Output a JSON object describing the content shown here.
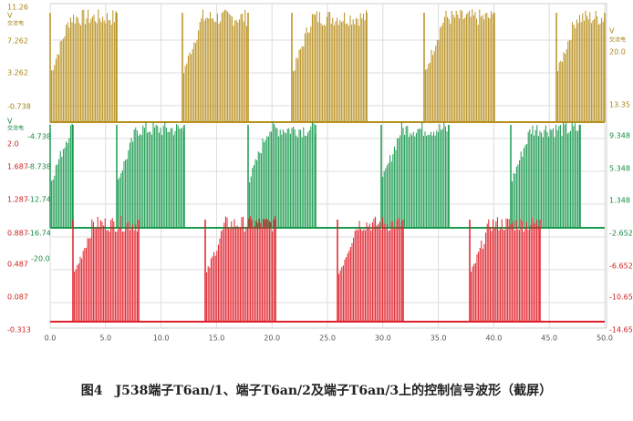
{
  "left_axis": {
    "top_unit": "V",
    "top_name": "交流电",
    "labels_top": [
      "11.26",
      "7.262",
      "3.262",
      "-0.738"
    ],
    "mid_unit": "V",
    "mid_name": "交流电",
    "labels_mid": [
      "-4.738",
      "-8.738",
      "-12.74",
      "-16.74",
      "-20.0"
    ],
    "labels_bottom": [
      "2.0",
      "1.687",
      "1.287",
      "0.887",
      "0.487",
      "0.087",
      "-0.313"
    ]
  },
  "right_axis": {
    "unit": "V",
    "name": "交流电",
    "labels": [
      "20.0",
      "13.35",
      "9.348",
      "5.348",
      "1.348",
      "-2.652",
      "-6.652",
      "-10.65",
      "-14.65"
    ]
  },
  "x_axis": {
    "labels": [
      "0.0",
      "5.0",
      "10.0",
      "15.0",
      "20.0",
      "25.0",
      "30.0",
      "35.0",
      "40.0",
      "45.0",
      "50.0"
    ]
  },
  "caption": "图4　J538端子T6an/1、端子T6an/2及端子T6an/3上的控制信号波形（截屏）"
}
